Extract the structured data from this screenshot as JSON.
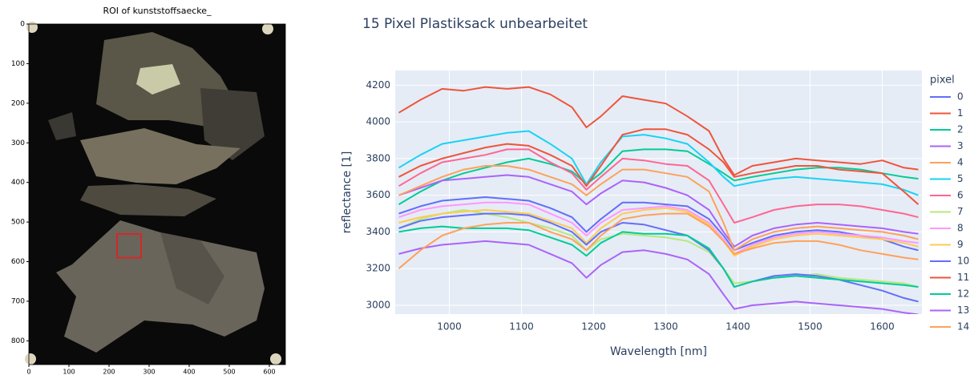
{
  "chart_data": [
    {
      "type": "image",
      "title": "ROI of kunststoffsaecke_",
      "xlim": [
        0,
        640
      ],
      "ylim": [
        860,
        0
      ],
      "xticks": [
        0,
        100,
        200,
        300,
        400,
        500,
        600
      ],
      "yticks": [
        0,
        100,
        200,
        300,
        400,
        500,
        600,
        700,
        800
      ],
      "roi": {
        "x": [
          220,
          280
        ],
        "y": [
          530,
          590
        ],
        "color": "#d62728"
      }
    },
    {
      "type": "line",
      "title": "15 Pixel Plastiksack unbearbeitet",
      "x_label": "Wavelength [nm]",
      "y_label": "reflectance [1]",
      "legend_title": "pixel",
      "xlim": [
        925,
        1655
      ],
      "ylim": [
        2952,
        4280
      ],
      "xticks": [
        1000,
        1100,
        1200,
        1300,
        1400,
        1500,
        1600
      ],
      "yticks": [
        3000,
        3200,
        3400,
        3600,
        3800,
        4000,
        4200
      ],
      "grid": true,
      "x": [
        930,
        960,
        990,
        1020,
        1050,
        1080,
        1110,
        1140,
        1170,
        1190,
        1210,
        1240,
        1270,
        1300,
        1330,
        1360,
        1380,
        1395,
        1420,
        1450,
        1480,
        1510,
        1540,
        1570,
        1600,
        1630,
        1650
      ],
      "series": [
        {
          "name": "0",
          "color": "#636efa",
          "values": [
            3500,
            3540,
            3570,
            3580,
            3590,
            3580,
            3570,
            3530,
            3480,
            3400,
            3470,
            3560,
            3560,
            3550,
            3540,
            3470,
            3380,
            3300,
            3340,
            3380,
            3400,
            3410,
            3400,
            3380,
            3360,
            3320,
            3300
          ]
        },
        {
          "name": "1",
          "color": "#ef553b",
          "values": [
            4050,
            4120,
            4180,
            4170,
            4190,
            4180,
            4190,
            4150,
            4080,
            3970,
            4030,
            4140,
            4120,
            4100,
            4030,
            3950,
            3800,
            3710,
            3760,
            3780,
            3800,
            3790,
            3780,
            3770,
            3790,
            3750,
            3740
          ]
        },
        {
          "name": "2",
          "color": "#00cc96",
          "values": [
            3550,
            3620,
            3680,
            3720,
            3750,
            3780,
            3800,
            3770,
            3730,
            3660,
            3720,
            3840,
            3850,
            3850,
            3840,
            3770,
            3720,
            3680,
            3700,
            3720,
            3740,
            3750,
            3750,
            3740,
            3720,
            3700,
            3690
          ]
        },
        {
          "name": "3",
          "color": "#ab63fa",
          "values": [
            3600,
            3640,
            3680,
            3690,
            3700,
            3710,
            3700,
            3660,
            3620,
            3550,
            3610,
            3680,
            3670,
            3640,
            3600,
            3520,
            3400,
            3320,
            3380,
            3420,
            3440,
            3450,
            3440,
            3430,
            3420,
            3400,
            3390
          ]
        },
        {
          "name": "4",
          "color": "#ffa15a",
          "values": [
            3600,
            3650,
            3700,
            3740,
            3760,
            3760,
            3740,
            3700,
            3660,
            3600,
            3660,
            3740,
            3740,
            3720,
            3700,
            3620,
            3450,
            3300,
            3360,
            3400,
            3420,
            3430,
            3420,
            3410,
            3400,
            3380,
            3360
          ]
        },
        {
          "name": "5",
          "color": "#19d3f3",
          "values": [
            3750,
            3820,
            3880,
            3900,
            3920,
            3940,
            3950,
            3880,
            3800,
            3660,
            3780,
            3920,
            3930,
            3910,
            3880,
            3780,
            3700,
            3650,
            3670,
            3690,
            3700,
            3690,
            3680,
            3670,
            3660,
            3630,
            3600
          ]
        },
        {
          "name": "6",
          "color": "#ff6692",
          "values": [
            3650,
            3720,
            3780,
            3800,
            3820,
            3850,
            3850,
            3780,
            3720,
            3630,
            3700,
            3800,
            3790,
            3770,
            3760,
            3680,
            3550,
            3450,
            3480,
            3520,
            3540,
            3550,
            3550,
            3540,
            3520,
            3500,
            3480
          ]
        },
        {
          "name": "7",
          "color": "#b6e880",
          "values": [
            3420,
            3470,
            3500,
            3520,
            3500,
            3480,
            3450,
            3420,
            3380,
            3300,
            3360,
            3390,
            3380,
            3370,
            3350,
            3290,
            3200,
            3120,
            3130,
            3150,
            3160,
            3170,
            3150,
            3140,
            3130,
            3120,
            3100
          ]
        },
        {
          "name": "8",
          "color": "#ff97ff",
          "values": [
            3480,
            3520,
            3540,
            3550,
            3560,
            3560,
            3550,
            3500,
            3450,
            3380,
            3450,
            3520,
            3530,
            3540,
            3520,
            3450,
            3360,
            3280,
            3330,
            3370,
            3390,
            3400,
            3390,
            3380,
            3370,
            3350,
            3340
          ]
        },
        {
          "name": "9",
          "color": "#fecb52",
          "values": [
            3450,
            3480,
            3500,
            3510,
            3520,
            3510,
            3500,
            3460,
            3420,
            3340,
            3420,
            3500,
            3520,
            3530,
            3510,
            3440,
            3350,
            3270,
            3320,
            3360,
            3380,
            3390,
            3380,
            3370,
            3360,
            3340,
            3320
          ]
        },
        {
          "name": "10",
          "color": "#636efa",
          "values": [
            3420,
            3460,
            3480,
            3490,
            3500,
            3500,
            3490,
            3450,
            3400,
            3330,
            3400,
            3450,
            3440,
            3410,
            3380,
            3300,
            3200,
            3100,
            3130,
            3160,
            3170,
            3160,
            3140,
            3110,
            3080,
            3040,
            3020
          ]
        },
        {
          "name": "11",
          "color": "#ef553b",
          "values": [
            3700,
            3760,
            3800,
            3830,
            3860,
            3880,
            3870,
            3820,
            3760,
            3650,
            3760,
            3930,
            3960,
            3960,
            3930,
            3850,
            3780,
            3700,
            3720,
            3740,
            3760,
            3760,
            3740,
            3730,
            3720,
            3620,
            3550
          ]
        },
        {
          "name": "12",
          "color": "#00cc96",
          "values": [
            3400,
            3420,
            3430,
            3420,
            3420,
            3420,
            3410,
            3370,
            3330,
            3270,
            3340,
            3400,
            3390,
            3390,
            3380,
            3310,
            3200,
            3100,
            3130,
            3150,
            3160,
            3150,
            3140,
            3130,
            3120,
            3110,
            3100
          ]
        },
        {
          "name": "13",
          "color": "#ab63fa",
          "values": [
            3280,
            3310,
            3330,
            3340,
            3350,
            3340,
            3330,
            3280,
            3230,
            3150,
            3220,
            3290,
            3300,
            3280,
            3250,
            3170,
            3060,
            2980,
            3000,
            3010,
            3020,
            3010,
            3000,
            2990,
            2980,
            2960,
            2950
          ]
        },
        {
          "name": "14",
          "color": "#ffa15a",
          "values": [
            3200,
            3300,
            3380,
            3420,
            3440,
            3450,
            3450,
            3400,
            3360,
            3300,
            3380,
            3470,
            3490,
            3500,
            3500,
            3430,
            3350,
            3280,
            3310,
            3340,
            3350,
            3350,
            3330,
            3300,
            3280,
            3260,
            3250
          ]
        }
      ]
    }
  ]
}
